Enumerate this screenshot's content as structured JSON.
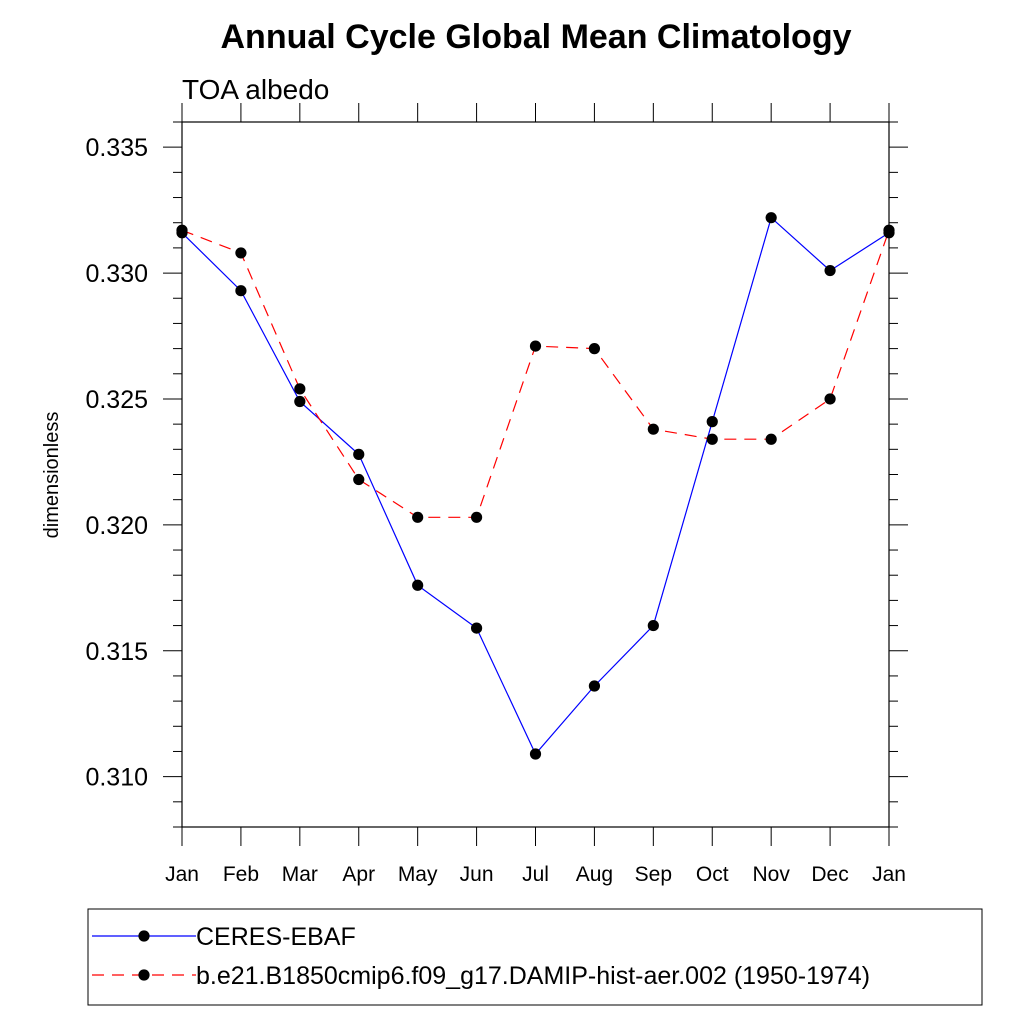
{
  "chart_data": {
    "type": "line",
    "title": "Annual Cycle Global Mean Climatology",
    "subtitle": "TOA albedo",
    "xlabel": "",
    "ylabel": "dimensionless",
    "categories": [
      "Jan",
      "Feb",
      "Mar",
      "Apr",
      "May",
      "Jun",
      "Jul",
      "Aug",
      "Sep",
      "Oct",
      "Nov",
      "Dec",
      "Jan"
    ],
    "ylim": [
      0.308,
      0.336
    ],
    "yticks": [
      0.31,
      0.315,
      0.32,
      0.325,
      0.33,
      0.335
    ],
    "ytick_labels": [
      "0.310",
      "0.315",
      "0.320",
      "0.325",
      "0.330",
      "0.335"
    ],
    "grid": false,
    "legend_position": "bottom",
    "series": [
      {
        "name": "CERES-EBAF",
        "color": "#0000ff",
        "line_style": "solid",
        "marker": "filled-circle",
        "values": [
          0.3316,
          0.3293,
          0.3249,
          0.3228,
          0.3176,
          0.3159,
          0.3109,
          0.3136,
          0.316,
          0.3241,
          0.3322,
          0.3301,
          0.3316
        ]
      },
      {
        "name": "b.e21.B1850cmip6.f09_g17.DAMIP-hist-aer.002 (1950-1974)",
        "color": "#ff0000",
        "line_style": "dashed",
        "marker": "filled-circle",
        "values": [
          0.3317,
          0.3308,
          0.3254,
          0.3218,
          0.3203,
          0.3203,
          0.3271,
          0.327,
          0.3238,
          0.3234,
          0.3234,
          0.325,
          0.3317
        ]
      }
    ]
  }
}
